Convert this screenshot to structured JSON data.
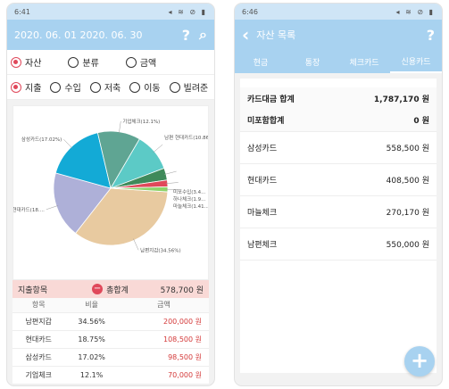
{
  "left": {
    "status": {
      "time": "6:41",
      "icons": "◂ ≋ ⊘ ▮"
    },
    "appbar": {
      "title": "2020. 06. 01  2020. 06. 30",
      "help_icon": "?",
      "search_icon": "⌕"
    },
    "filter1": [
      {
        "label": "자산",
        "selected": true
      },
      {
        "label": "분류",
        "selected": false
      },
      {
        "label": "금액",
        "selected": false
      }
    ],
    "filter2": [
      {
        "label": "지출",
        "selected": true
      },
      {
        "label": "수입",
        "selected": false
      },
      {
        "label": "저축",
        "selected": false
      },
      {
        "label": "이동",
        "selected": false
      },
      {
        "label": "빌려준",
        "selected": false
      }
    ],
    "chart_data": {
      "type": "pie",
      "slices": [
        {
          "label": "남편지갑(34.56%)",
          "value": 34.56,
          "color": "#e8caa0"
        },
        {
          "label": "현대카드(18....",
          "value": 18.75,
          "color": "#aeb0d8"
        },
        {
          "label": "삼성카드(17.02%)",
          "value": 17.02,
          "color": "#13aad6"
        },
        {
          "label": "기업체크(12.1%)",
          "value": 12.1,
          "color": "#5fa593"
        },
        {
          "label": "남편 현대카드(10.86%)",
          "value": 10.86,
          "color": "#5ccac6"
        },
        {
          "label": "미포수입(3.4...",
          "value": 3.4,
          "color": "#3f8a5a"
        },
        {
          "label": "하나체크(1.9...",
          "value": 1.9,
          "color": "#e0485a"
        },
        {
          "label": "마늘체크(1.41...",
          "value": 1.41,
          "color": "#8ed36a"
        }
      ]
    },
    "summary": {
      "label": "지출항목",
      "sign": "−",
      "total_label": "총합계",
      "total": "578,700 원"
    },
    "table": {
      "headers": [
        "항목",
        "비율",
        "금액"
      ],
      "rows": [
        {
          "name": "남편지갑",
          "pct": "34.56%",
          "amt": "200,000 원"
        },
        {
          "name": "현대카드",
          "pct": "18.75%",
          "amt": "108,500 원"
        },
        {
          "name": "삼성카드",
          "pct": "17.02%",
          "amt": "98,500 원"
        },
        {
          "name": "기업체크",
          "pct": "12.1%",
          "amt": "70,000 원"
        }
      ]
    }
  },
  "right": {
    "status": {
      "time": "6:46",
      "icons": "◂ ≋ ⊘ ▮"
    },
    "appbar": {
      "back_icon": "‹",
      "title": "자산 목록",
      "help_icon": "?"
    },
    "tabs": [
      {
        "label": "현금",
        "active": false
      },
      {
        "label": "통장",
        "active": false
      },
      {
        "label": "체크카드",
        "active": false
      },
      {
        "label": "신용카드",
        "active": true
      }
    ],
    "summary": [
      {
        "label": "카드대금 합계",
        "value": "1,787,170 원"
      },
      {
        "label": "미포함합계",
        "value": "0 원"
      }
    ],
    "items": [
      {
        "label": "삼성카드",
        "value": "558,500 원"
      },
      {
        "label": "현대카드",
        "value": "408,500 원"
      },
      {
        "label": "마늘체크",
        "value": "270,170 원"
      },
      {
        "label": "남편체크",
        "value": "550,000 원"
      }
    ],
    "fab": "+"
  }
}
